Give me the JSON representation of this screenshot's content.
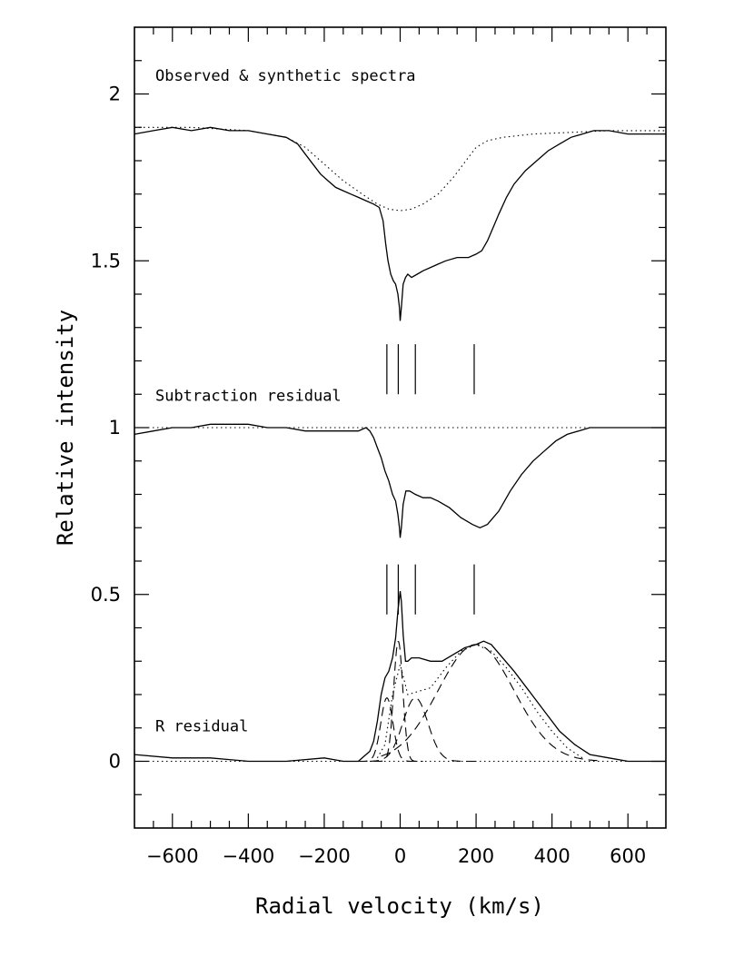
{
  "chart_data": {
    "type": "line",
    "xlabel": "Radial velocity (km/s)",
    "ylabel": "Relative intensity",
    "xlim": [
      -700,
      700
    ],
    "ylim": [
      -0.2,
      2.2
    ],
    "x_ticks": [
      -600,
      -400,
      -200,
      0,
      200,
      400,
      600
    ],
    "x_tick_labels": [
      "−600",
      "−400",
      "−200",
      "0",
      "200",
      "400",
      "600"
    ],
    "y_ticks": [
      0,
      0.5,
      1,
      1.5,
      2
    ],
    "y_tick_labels": [
      "0",
      "0.5",
      "1",
      "1.5",
      "2"
    ],
    "grid": false,
    "annotations": [
      {
        "text": "Observed & synthetic spectra",
        "x": -645,
        "y": 2.04
      },
      {
        "text": "Subtraction residual",
        "x": -645,
        "y": 1.08
      },
      {
        "text": "R residual",
        "x": -645,
        "y": 0.09
      }
    ],
    "velocity_markers": {
      "x": [
        -35,
        -5,
        40,
        195
      ],
      "spans": [
        [
          1.1,
          1.25
        ],
        [
          0.44,
          0.59
        ]
      ]
    },
    "series": [
      {
        "style": "solid",
        "x": [
          -700,
          -650,
          -600,
          -550,
          -500,
          -450,
          -400,
          -350,
          -300,
          -270,
          -250,
          -230,
          -210,
          -190,
          -170,
          -150,
          -130,
          -110,
          -90,
          -70,
          -55,
          -45,
          -38,
          -32,
          -25,
          -18,
          -12,
          -6,
          -2,
          0,
          3,
          8,
          14,
          20,
          30,
          45,
          60,
          80,
          100,
          120,
          150,
          180,
          200,
          215,
          230,
          245,
          260,
          280,
          300,
          330,
          360,
          390,
          420,
          450,
          480,
          510,
          550,
          600,
          650,
          700
        ],
        "y": [
          1.88,
          1.89,
          1.9,
          1.89,
          1.9,
          1.89,
          1.89,
          1.88,
          1.87,
          1.85,
          1.82,
          1.79,
          1.76,
          1.74,
          1.72,
          1.71,
          1.7,
          1.69,
          1.68,
          1.67,
          1.66,
          1.62,
          1.55,
          1.5,
          1.46,
          1.44,
          1.43,
          1.4,
          1.36,
          1.32,
          1.36,
          1.43,
          1.45,
          1.46,
          1.45,
          1.46,
          1.47,
          1.48,
          1.49,
          1.5,
          1.51,
          1.51,
          1.52,
          1.53,
          1.56,
          1.6,
          1.64,
          1.69,
          1.73,
          1.77,
          1.8,
          1.83,
          1.85,
          1.87,
          1.88,
          1.89,
          1.89,
          1.88,
          1.88,
          1.88
        ]
      },
      {
        "style": "dotted",
        "x": [
          -700,
          -550,
          -400,
          -300,
          -250,
          -200,
          -150,
          -100,
          -60,
          -30,
          0,
          30,
          60,
          100,
          140,
          180,
          200,
          230,
          270,
          350,
          450,
          550,
          700
        ],
        "y": [
          1.9,
          1.9,
          1.89,
          1.87,
          1.84,
          1.79,
          1.74,
          1.7,
          1.67,
          1.655,
          1.65,
          1.655,
          1.67,
          1.7,
          1.75,
          1.81,
          1.84,
          1.86,
          1.87,
          1.88,
          1.885,
          1.89,
          1.89
        ]
      },
      {
        "style": "solid",
        "x": [
          -700,
          -650,
          -600,
          -550,
          -500,
          -450,
          -400,
          -350,
          -300,
          -250,
          -200,
          -150,
          -110,
          -90,
          -80,
          -70,
          -60,
          -50,
          -40,
          -30,
          -20,
          -12,
          -6,
          -2,
          0,
          3,
          8,
          15,
          25,
          40,
          60,
          80,
          100,
          130,
          160,
          190,
          210,
          230,
          260,
          290,
          320,
          350,
          380,
          410,
          440,
          470,
          500,
          550,
          600,
          650,
          700
        ],
        "y": [
          0.98,
          0.99,
          1.0,
          1.0,
          1.01,
          1.01,
          1.01,
          1.0,
          1.0,
          0.99,
          0.99,
          0.99,
          0.99,
          1.0,
          0.99,
          0.97,
          0.94,
          0.91,
          0.87,
          0.84,
          0.8,
          0.78,
          0.74,
          0.7,
          0.67,
          0.7,
          0.77,
          0.81,
          0.81,
          0.8,
          0.79,
          0.79,
          0.78,
          0.76,
          0.73,
          0.71,
          0.7,
          0.71,
          0.75,
          0.81,
          0.86,
          0.9,
          0.93,
          0.96,
          0.98,
          0.99,
          1.0,
          1.0,
          1.0,
          1.0,
          1.0
        ]
      },
      {
        "style": "dotted",
        "x": [
          -700,
          700
        ],
        "y": [
          1.0,
          1.0
        ]
      },
      {
        "style": "solid",
        "x": [
          -700,
          -600,
          -500,
          -400,
          -300,
          -200,
          -150,
          -110,
          -100,
          -90,
          -80,
          -70,
          -60,
          -50,
          -40,
          -30,
          -20,
          -12,
          -6,
          -2,
          0,
          3,
          8,
          14,
          20,
          30,
          50,
          80,
          110,
          140,
          170,
          200,
          220,
          240,
          270,
          300,
          340,
          380,
          420,
          460,
          500,
          550,
          600,
          650,
          700
        ],
        "y": [
          0.02,
          0.01,
          0.01,
          0.0,
          0.0,
          0.01,
          0.0,
          0.0,
          0.01,
          0.02,
          0.03,
          0.06,
          0.12,
          0.2,
          0.25,
          0.27,
          0.31,
          0.37,
          0.45,
          0.49,
          0.51,
          0.48,
          0.38,
          0.3,
          0.3,
          0.31,
          0.31,
          0.3,
          0.3,
          0.32,
          0.34,
          0.35,
          0.36,
          0.35,
          0.31,
          0.27,
          0.21,
          0.15,
          0.09,
          0.05,
          0.02,
          0.01,
          0.0,
          0.0,
          0.0
        ]
      },
      {
        "style": "dotted",
        "x": [
          -700,
          700
        ],
        "y": [
          0.0,
          0.0
        ]
      },
      {
        "style": "dashed",
        "gaussian": {
          "center": -35,
          "amplitude": 0.19,
          "sigma": 16
        },
        "x": [
          -110,
          40
        ]
      },
      {
        "style": "dashed",
        "gaussian": {
          "center": -5,
          "amplitude": 0.36,
          "sigma": 12
        },
        "x": [
          -70,
          60
        ]
      },
      {
        "style": "dashed",
        "gaussian": {
          "center": 40,
          "amplitude": 0.19,
          "sigma": 33
        },
        "x": [
          -80,
          200
        ]
      },
      {
        "style": "dashed",
        "gaussian": {
          "center": 200,
          "amplitude": 0.35,
          "sigma": 100
        },
        "x": [
          -50,
          520
        ]
      },
      {
        "style": "dotted",
        "x": [
          -60,
          -40,
          -20,
          0,
          20,
          50,
          80,
          120,
          160,
          200,
          240,
          280,
          320,
          360,
          400,
          440,
          480
        ],
        "y": [
          0.01,
          0.05,
          0.2,
          0.29,
          0.2,
          0.21,
          0.22,
          0.28,
          0.33,
          0.35,
          0.33,
          0.28,
          0.22,
          0.15,
          0.09,
          0.04,
          0.01
        ]
      }
    ]
  }
}
